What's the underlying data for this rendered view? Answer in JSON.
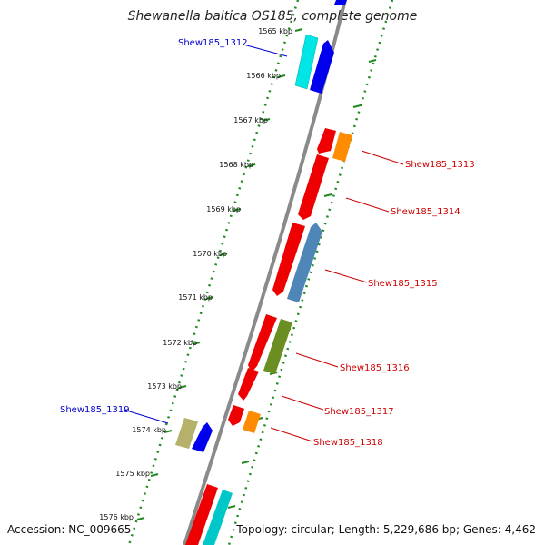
{
  "title": "Shewanella baltica OS185, complete genome",
  "accession": "Accession: NC_009665",
  "topology": "Topology: circular; Length: 5,229,686 bp; Genes: 4,462",
  "ticks": [
    "1565 kbp",
    "1566 kbp",
    "1567 kbp",
    "1568 kbp",
    "1569 kbp",
    "1570 kbp",
    "1571 kbp",
    "1572 kbp",
    "1573 kbp",
    "1574 kbp",
    "1575 kbp",
    "1576 kbp"
  ],
  "labels": {
    "g1312": "Shew185_1312",
    "g1313": "Shew185_1313",
    "g1314": "Shew185_1314",
    "g1315": "Shew185_1315",
    "g1316": "Shew185_1316",
    "g1317": "Shew185_1317",
    "g1318": "Shew185_1318",
    "g1319": "Shew185_1319"
  },
  "colors": {
    "backbone": "#8a8a8a",
    "scale_dots": "#1f8a1f",
    "red": "#ee0000",
    "orange": "#ff8c00",
    "blue": "#0000ee",
    "cyan": "#00e5e5",
    "steelblue": "#4f86b8",
    "olive": "#6b8e23",
    "khaki": "#b5b06a",
    "label_blue": "#0000cc",
    "label_red": "#cc0000"
  }
}
